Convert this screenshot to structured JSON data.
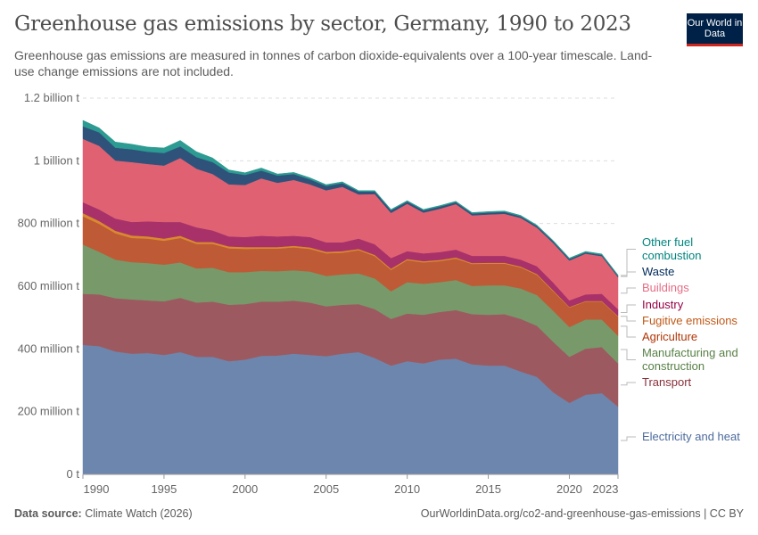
{
  "header": {
    "title": "Greenhouse gas emissions by sector, Germany, 1990 to 2023",
    "subtitle": "Greenhouse gas emissions are measured in tonnes of carbon dioxide-equivalents over a 100-year timescale. Land-use change emissions are not included.",
    "logo": "Our World in Data"
  },
  "footer": {
    "source_label": "Data source:",
    "source": "Climate Watch (2026)",
    "url": "OurWorldinData.org/co2-and-greenhouse-gas-emissions | CC BY"
  },
  "chart_data": {
    "type": "area",
    "stacked": true,
    "title": "Greenhouse gas emissions by sector, Germany, 1990 to 2023",
    "ylabel": "",
    "xlabel": "",
    "unit": "t",
    "grid": "horizontal dashed",
    "legend": "right (inline labels)",
    "ylim": [
      0,
      1200000000
    ],
    "yticks": [
      {
        "v": 0,
        "label": "0 t"
      },
      {
        "v": 200000000,
        "label": "200 million t"
      },
      {
        "v": 400000000,
        "label": "400 million t"
      },
      {
        "v": 600000000,
        "label": "600 million t"
      },
      {
        "v": 800000000,
        "label": "800 million t"
      },
      {
        "v": 1000000000,
        "label": "1 billion t"
      },
      {
        "v": 1200000000,
        "label": "1.2 billion t"
      }
    ],
    "xticks": [
      "1990",
      "1995",
      "2000",
      "2005",
      "2010",
      "2015",
      "2020",
      "2023"
    ],
    "x": [
      1990,
      1991,
      1992,
      1993,
      1994,
      1995,
      1996,
      1997,
      1998,
      1999,
      2000,
      2001,
      2002,
      2003,
      2004,
      2005,
      2006,
      2007,
      2008,
      2009,
      2010,
      2011,
      2012,
      2013,
      2014,
      2015,
      2016,
      2017,
      2018,
      2019,
      2020,
      2021,
      2022,
      2023
    ],
    "value_unit": "million t",
    "series": [
      {
        "name": "Electricity and heat",
        "color": "#6d86ae",
        "label_color": "#4c6a9c",
        "values": [
          413,
          409,
          392,
          385,
          387,
          381,
          390,
          375,
          375,
          361,
          366,
          378,
          379,
          385,
          381,
          377,
          385,
          390,
          371,
          347,
          361,
          354,
          366,
          369,
          351,
          347,
          347,
          328,
          311,
          262,
          228,
          254,
          259,
          216
        ]
      },
      {
        "name": "Transport",
        "color": "#9c5a60",
        "label_color": "#883039",
        "values": [
          163,
          165,
          170,
          173,
          168,
          171,
          173,
          173,
          176,
          180,
          177,
          173,
          172,
          169,
          167,
          159,
          156,
          153,
          156,
          149,
          152,
          155,
          152,
          155,
          160,
          162,
          164,
          168,
          163,
          161,
          147,
          147,
          147,
          138
        ]
      },
      {
        "name": "Manufacturing and construction",
        "color": "#78996a",
        "label_color": "#578145",
        "values": [
          157,
          136,
          123,
          119,
          119,
          117,
          113,
          109,
          108,
          104,
          102,
          98,
          97,
          97,
          99,
          97,
          97,
          98,
          98,
          88,
          100,
          99,
          95,
          96,
          90,
          94,
          92,
          97,
          98,
          99,
          95,
          93,
          88,
          88
        ]
      },
      {
        "name": "Agriculture",
        "color": "#be5a35",
        "label_color": "#b13507",
        "values": [
          90,
          89,
          84,
          77,
          78,
          76,
          78,
          78,
          76,
          76,
          74,
          71,
          72,
          73,
          72,
          72,
          69,
          74,
          71,
          68,
          70,
          68,
          67,
          68,
          70,
          69,
          69,
          67,
          64,
          62,
          62,
          57,
          57,
          61
        ]
      },
      {
        "name": "Fugitive emissions",
        "color": "#d98a2e",
        "label_color": "#c05917",
        "values": [
          10,
          9,
          8,
          8,
          7,
          7,
          7,
          6,
          6,
          6,
          6,
          5,
          5,
          5,
          5,
          5,
          5,
          4,
          4,
          4,
          4,
          4,
          4,
          4,
          3,
          3,
          3,
          3,
          3,
          3,
          2,
          2,
          2,
          2
        ]
      },
      {
        "name": "Industry",
        "color": "#a8316a",
        "label_color": "#970046",
        "values": [
          35,
          37,
          39,
          43,
          48,
          53,
          44,
          47,
          37,
          32,
          32,
          36,
          34,
          32,
          33,
          30,
          28,
          33,
          34,
          34,
          25,
          25,
          25,
          25,
          23,
          22,
          22,
          22,
          25,
          25,
          21,
          21,
          23,
          22
        ]
      },
      {
        "name": "Buildings",
        "color": "#e06272",
        "label_color": "#e56e85",
        "values": [
          202,
          203,
          185,
          191,
          183,
          180,
          204,
          187,
          180,
          166,
          166,
          183,
          171,
          178,
          168,
          166,
          177,
          141,
          160,
          144,
          151,
          130,
          138,
          145,
          129,
          132,
          134,
          133,
          123,
          126,
          127,
          130,
          120,
          102
        ]
      },
      {
        "name": "Waste",
        "color": "#2f527b",
        "label_color": "#00295b",
        "values": [
          40,
          43,
          41,
          41,
          39,
          40,
          37,
          37,
          38,
          38,
          32,
          25,
          23,
          19,
          16,
          14,
          12,
          9,
          8,
          8,
          7,
          7,
          7,
          6,
          6,
          6,
          6,
          5,
          5,
          5,
          5,
          4,
          4,
          4
        ]
      },
      {
        "name": "Other fuel combustion",
        "color": "#2c9b91",
        "label_color": "#00847e",
        "values": [
          19,
          14,
          18,
          16,
          15,
          16,
          19,
          17,
          13,
          8,
          7,
          8,
          5,
          5,
          5,
          4,
          4,
          3,
          3,
          3,
          3,
          3,
          3,
          3,
          3,
          3,
          3,
          3,
          3,
          3,
          3,
          3,
          3,
          3
        ]
      }
    ]
  }
}
